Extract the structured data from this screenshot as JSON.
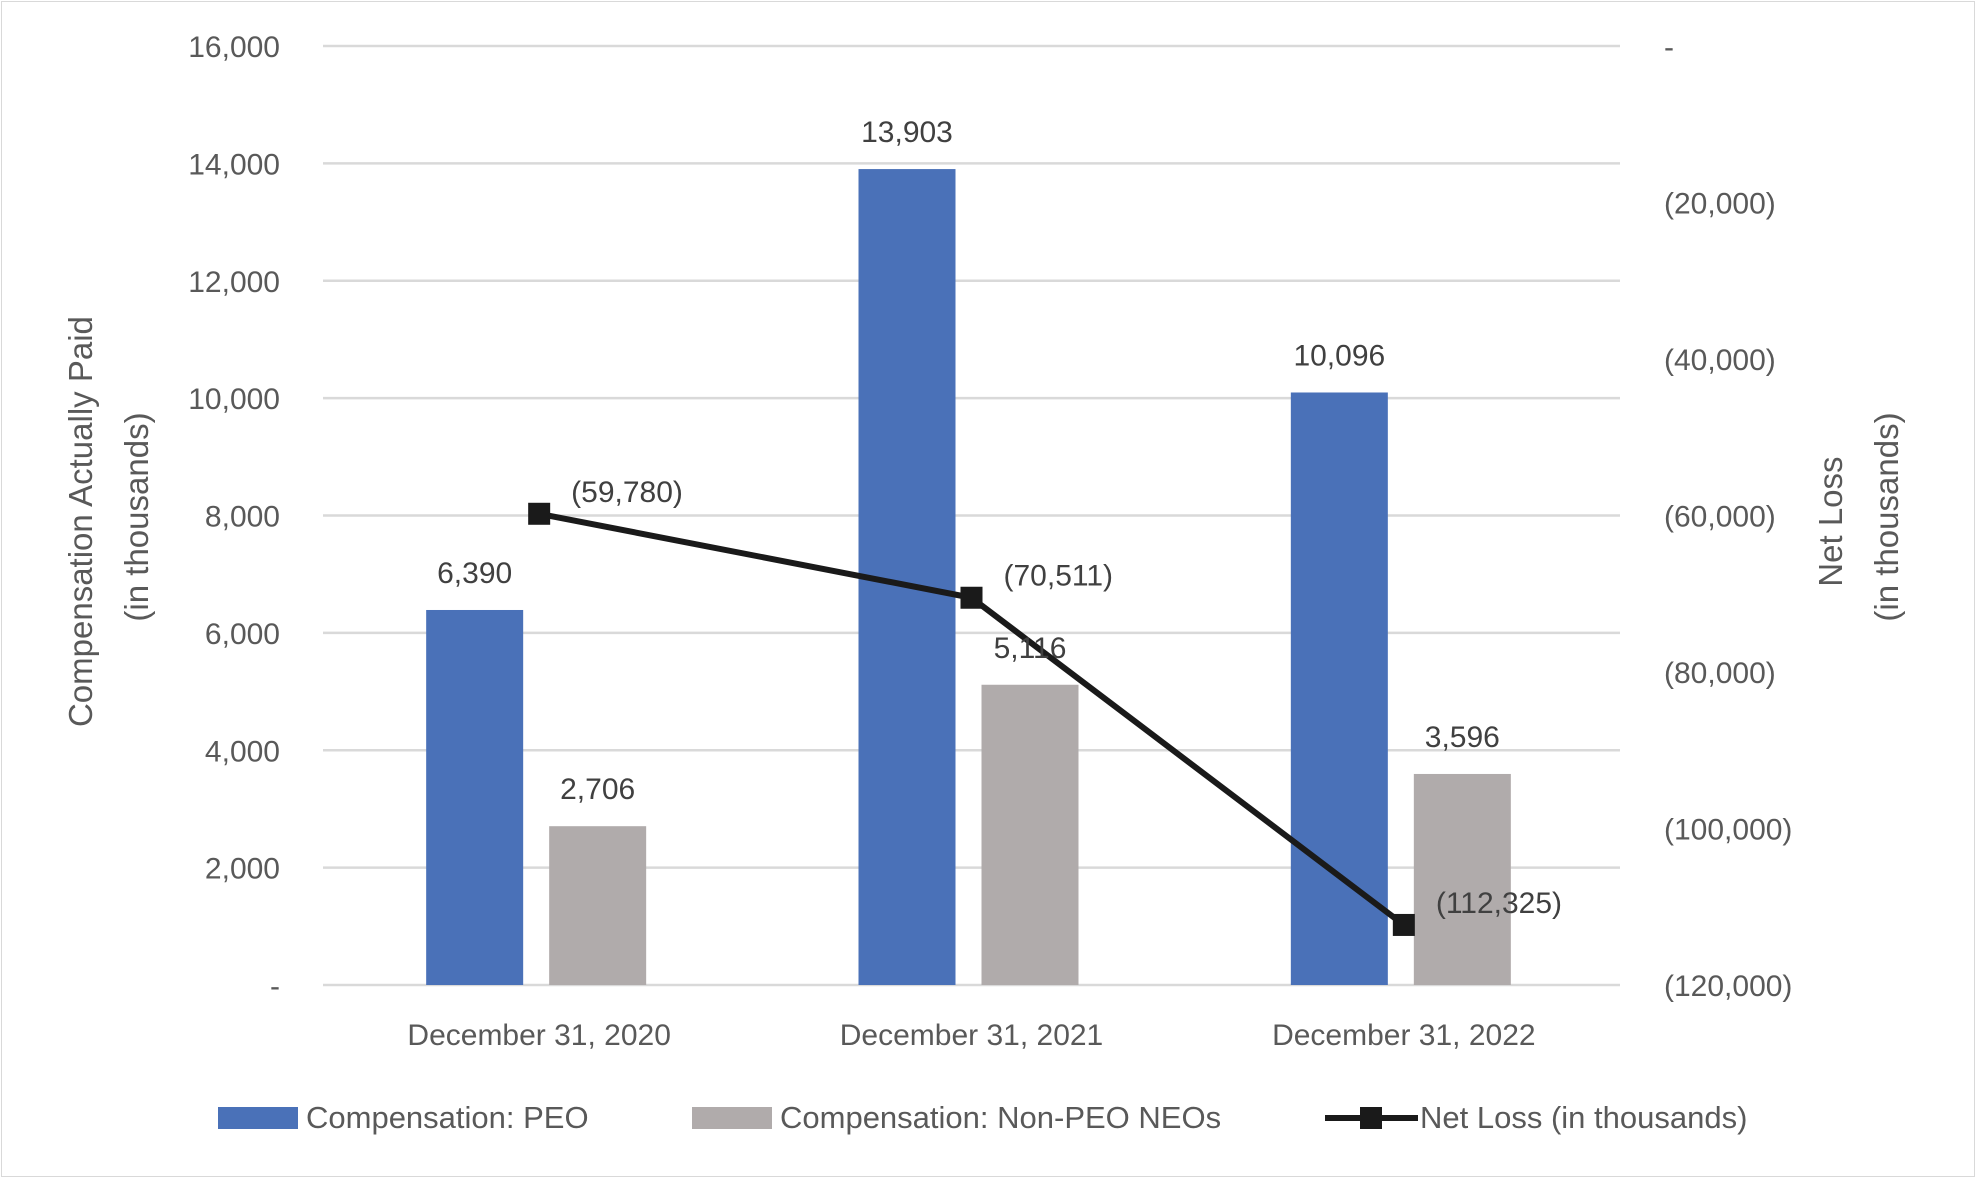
{
  "chart_data": {
    "type": "bar",
    "categories": [
      "December 31, 2020",
      "December 31, 2021",
      "December 31, 2022"
    ],
    "series": [
      {
        "name": "Compensation: PEO",
        "kind": "bar",
        "axis": "left",
        "color": "#4a71b8",
        "values": [
          6390,
          13903,
          10096
        ],
        "labels": [
          "6,390",
          "13,903",
          "10,096"
        ]
      },
      {
        "name": "Compensation: Non-PEO NEOs",
        "kind": "bar",
        "axis": "left",
        "color": "#b0abab",
        "values": [
          2706,
          5116,
          3596
        ],
        "labels": [
          "2,706",
          "5,116",
          "3,596"
        ]
      },
      {
        "name": "Net Loss (in thousands)",
        "kind": "line",
        "axis": "right",
        "color": "#1a1a1a",
        "values": [
          -59780,
          -70511,
          -112325
        ],
        "labels": [
          "(59,780)",
          "(70,511)",
          "(112,325)"
        ]
      }
    ],
    "left_axis": {
      "label_line1": "Compensation Actually Paid",
      "label_line2": "(in thousands)",
      "ylim": [
        0,
        16000
      ],
      "ticks": [
        0,
        2000,
        4000,
        6000,
        8000,
        10000,
        12000,
        14000,
        16000
      ],
      "tick_labels": [
        "-",
        "2,000",
        "4,000",
        "6,000",
        "8,000",
        "10,000",
        "12,000",
        "14,000",
        "16,000"
      ]
    },
    "right_axis": {
      "label_line1": "Net Loss",
      "label_line2": "(in thousands)",
      "ylim": [
        -120000,
        0
      ],
      "ticks": [
        0,
        -20000,
        -40000,
        -60000,
        -80000,
        -100000,
        -120000
      ],
      "tick_labels": [
        "-",
        "(20,000)",
        "(40,000)",
        "(60,000)",
        "(80,000)",
        "(100,000)",
        "(120,000)"
      ]
    },
    "grid": true,
    "legend_position": "bottom"
  }
}
